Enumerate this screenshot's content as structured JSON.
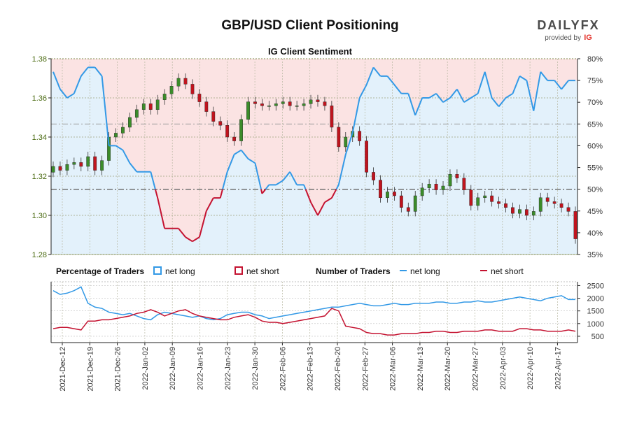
{
  "header": {
    "title": "GBP/USD Client Positioning",
    "logo_text": "DAILYFX",
    "logo_provided": "provided by",
    "logo_ig": "IG"
  },
  "chart_data": {
    "type": "line",
    "title": "GBP/USD Client Positioning",
    "subtitle": "IG Client Sentiment",
    "dates": [
      "2021-Dec-12",
      "2021-Dec-19",
      "2021-Dec-26",
      "2022-Jan-02",
      "2022-Jan-09",
      "2022-Jan-16",
      "2022-Jan-23",
      "2022-Jan-30",
      "2022-Feb-06",
      "2022-Feb-13",
      "2022-Feb-20",
      "2022-Feb-27",
      "2022-Mar-06",
      "2022-Mar-13",
      "2022-Mar-20",
      "2022-Mar-27",
      "2022-Apr-03",
      "2022-Apr-10",
      "2022-Apr-17"
    ],
    "price_axis": {
      "ticks": [
        "1.28",
        "1.30",
        "1.32",
        "1.34",
        "1.36",
        "1.38"
      ],
      "range": [
        1.28,
        1.38
      ]
    },
    "pct_axis": {
      "ticks": [
        "35%",
        "40%",
        "45%",
        "50%",
        "55%",
        "60%",
        "65%",
        "70%",
        "75%",
        "80%"
      ],
      "range": [
        35,
        80
      ],
      "reference_lines": [
        50,
        65
      ]
    },
    "count_axis": {
      "ticks": [
        "500",
        "1000",
        "1500",
        "2000",
        "2500"
      ],
      "range": [
        250,
        2650
      ]
    },
    "colors": {
      "net_long": "#3399e6",
      "net_short": "#c41230",
      "candle_up": "#3b8c2a",
      "candle_down": "#c0141e",
      "long_fill": "#e3f1fb",
      "short_fill": "#fbe3e3"
    },
    "price_close": [
      1.325,
      1.323,
      1.326,
      1.327,
      1.325,
      1.33,
      1.323,
      1.328,
      1.34,
      1.342,
      1.345,
      1.35,
      1.354,
      1.357,
      1.354,
      1.359,
      1.362,
      1.366,
      1.37,
      1.367,
      1.362,
      1.358,
      1.353,
      1.348,
      1.346,
      1.34,
      1.338,
      1.349,
      1.358,
      1.357,
      1.356,
      1.356,
      1.357,
      1.358,
      1.356,
      1.356,
      1.357,
      1.359,
      1.358,
      1.356,
      1.345,
      1.335,
      1.34,
      1.343,
      1.338,
      1.322,
      1.318,
      1.309,
      1.312,
      1.31,
      1.304,
      1.302,
      1.31,
      1.314,
      1.316,
      1.313,
      1.315,
      1.321,
      1.319,
      1.313,
      1.305,
      1.309,
      1.31,
      1.307,
      1.306,
      1.304,
      1.301,
      1.303,
      1.3,
      1.302,
      1.309,
      1.307,
      1.306,
      1.304,
      1.302,
      1.288
    ],
    "sentiment_long_pct": [
      77,
      73,
      71,
      72,
      76,
      78,
      78,
      76,
      60,
      60,
      59,
      56,
      54,
      54,
      54,
      48,
      41,
      41,
      41,
      39,
      38,
      39,
      45,
      48,
      48,
      54,
      58,
      59,
      57,
      56,
      49,
      51,
      51,
      52,
      54,
      51,
      51,
      47,
      44,
      47,
      48,
      51,
      58,
      63,
      71,
      74,
      78,
      76,
      76,
      74,
      72,
      72,
      67,
      71,
      71,
      72,
      70,
      71,
      73,
      70,
      71,
      72,
      77,
      71,
      69,
      71,
      72,
      76,
      75,
      68,
      77,
      75,
      75,
      73,
      75,
      75
    ],
    "long_traders": [
      2300,
      2150,
      2200,
      2300,
      2450,
      1800,
      1650,
      1600,
      1450,
      1400,
      1350,
      1400,
      1300,
      1200,
      1150,
      1350,
      1450,
      1400,
      1350,
      1300,
      1250,
      1300,
      1200,
      1150,
      1200,
      1350,
      1400,
      1450,
      1450,
      1350,
      1300,
      1200,
      1250,
      1300,
      1350,
      1400,
      1450,
      1500,
      1550,
      1600,
      1650,
      1650,
      1700,
      1750,
      1800,
      1750,
      1700,
      1700,
      1750,
      1800,
      1750,
      1750,
      1800,
      1800,
      1800,
      1850,
      1850,
      1800,
      1800,
      1850,
      1850,
      1900,
      1850,
      1850,
      1900,
      1950,
      2000,
      2050,
      2000,
      1950,
      1900,
      2000,
      2050,
      2100,
      1950,
      1950
    ],
    "short_traders": [
      800,
      850,
      850,
      800,
      750,
      1100,
      1100,
      1150,
      1150,
      1200,
      1250,
      1300,
      1400,
      1450,
      1550,
      1450,
      1300,
      1400,
      1500,
      1550,
      1400,
      1300,
      1250,
      1200,
      1150,
      1150,
      1250,
      1300,
      1350,
      1250,
      1100,
      1050,
      1050,
      1000,
      1050,
      1100,
      1150,
      1200,
      1250,
      1300,
      1600,
      1500,
      900,
      850,
      800,
      650,
      600,
      600,
      550,
      550,
      600,
      600,
      600,
      650,
      650,
      700,
      700,
      650,
      650,
      700,
      700,
      700,
      750,
      750,
      700,
      700,
      700,
      800,
      800,
      750,
      750,
      700,
      700,
      700,
      750,
      700
    ],
    "series": [
      {
        "name": "net long"
      },
      {
        "name": "net short"
      }
    ],
    "legend": {
      "pct_label": "Percentage of Traders",
      "count_label": "Number of Traders"
    }
  }
}
